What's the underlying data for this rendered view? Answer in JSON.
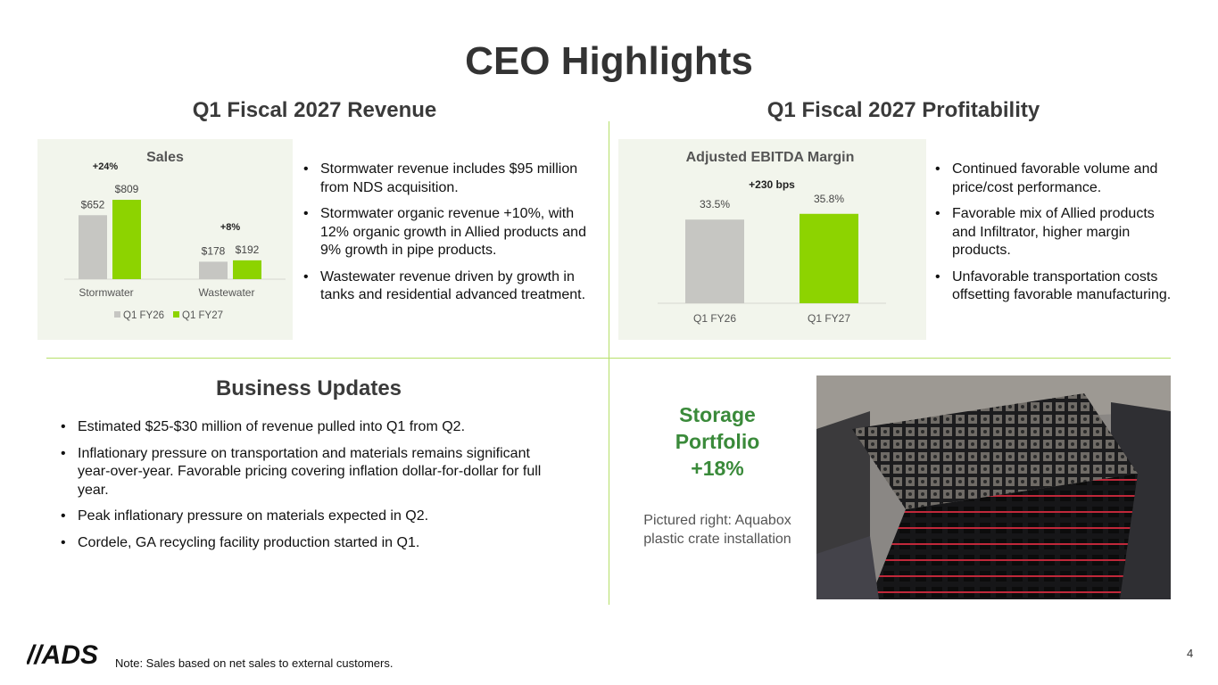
{
  "slide": {
    "title": "CEO Highlights",
    "page_number": "4",
    "note": "Note: Sales based on net sales to external customers.",
    "logo_text": "//ADS"
  },
  "revenue": {
    "heading": "Q1 Fiscal 2027 Revenue",
    "bullets": [
      "Stormwater revenue includes $95 million from NDS acquisition.",
      "Stormwater organic revenue +10%, with 12% organic growth in Allied products and 9% growth in pipe products.",
      "Wastewater revenue driven by growth in tanks and residential advanced treatment."
    ]
  },
  "profitability": {
    "heading": "Q1 Fiscal 2027 Profitability",
    "bullets": [
      "Continued favorable volume and price/cost performance.",
      "Favorable mix of Allied products and Infiltrator, higher margin products.",
      "Unfavorable transportation costs offsetting favorable manufacturing."
    ]
  },
  "business": {
    "heading": "Business Updates",
    "bullets": [
      "Estimated $25-$30 million of revenue pulled into Q1 from Q2.",
      "Inflationary pressure on transportation and materials remains significant year-over-year. Favorable pricing covering inflation dollar-for-dollar for full year.",
      "Peak inflationary pressure on materials expected in Q2.",
      "Cordele, GA recycling facility production started in Q1."
    ]
  },
  "storage": {
    "line1": "Storage",
    "line2": "Portfolio",
    "line3": "+18%",
    "caption_line1": "Pictured right: Aquabox",
    "caption_line2": "plastic crate installation"
  },
  "colors": {
    "prior": "#c6c6c2",
    "current": "#8dd300",
    "accent_line": "#b6e06a",
    "storage_text": "#3a8a3a"
  },
  "chart_data": [
    {
      "type": "bar",
      "title": "Sales",
      "categories": [
        "Stormwater",
        "Wastewater"
      ],
      "series": [
        {
          "name": "Q1 FY26",
          "values": [
            652,
            178
          ],
          "labels": [
            "$652",
            "$178"
          ]
        },
        {
          "name": "Q1 FY27",
          "values": [
            809,
            192
          ],
          "labels": [
            "$809",
            "$192"
          ]
        }
      ],
      "growth_labels": [
        "+24%",
        "+8%"
      ],
      "ylim": [
        0,
        1000
      ],
      "legend": "bottom",
      "grid": false
    },
    {
      "type": "bar",
      "title": "Adjusted EBITDA Margin",
      "categories": [
        "Q1 FY26",
        "Q1 FY27"
      ],
      "values": [
        33.5,
        35.8
      ],
      "labels": [
        "33.5%",
        "35.8%"
      ],
      "annotation": "+230 bps",
      "ylim": [
        0,
        40
      ],
      "legend": "none",
      "grid": false
    }
  ]
}
